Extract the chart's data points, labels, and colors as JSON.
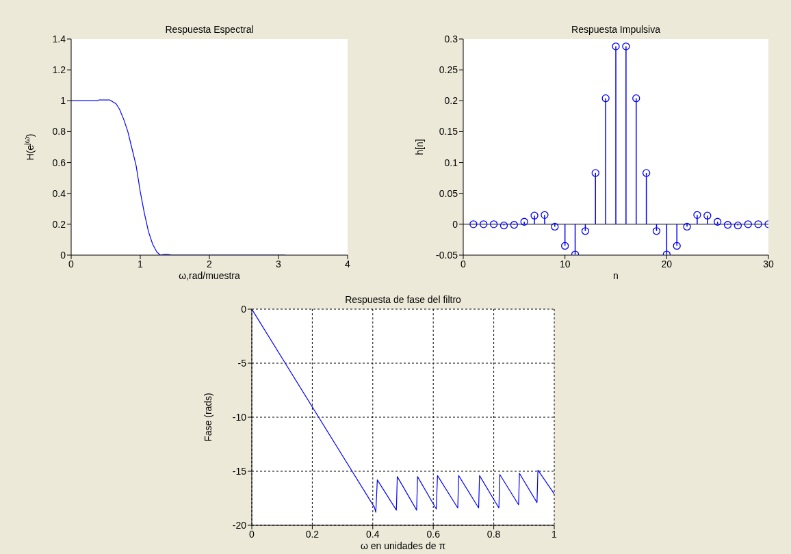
{
  "chart_data": [
    {
      "type": "line",
      "title": "Respuesta Espectral",
      "xlabel": "ω,rad/muestra",
      "ylabel": "H(e$^{jω}$)",
      "series": [
        {
          "color": "#0000ff",
          "x": [
            0,
            0.38,
            0.4,
            0.56,
            0.65,
            0.7,
            0.76,
            0.82,
            0.88,
            0.94,
            1.0,
            1.06,
            1.12,
            1.18,
            1.24,
            1.29,
            1.35,
            1.4,
            1.45,
            3.1
          ],
          "values": [
            1,
            1,
            1.005,
            1.005,
            0.98,
            0.945,
            0.88,
            0.8,
            0.69,
            0.58,
            0.41,
            0.27,
            0.15,
            0.07,
            0.02,
            0,
            0.005,
            0.005,
            0,
            0
          ]
        }
      ],
      "xlim": [
        0,
        4
      ],
      "xticks": [
        0,
        1,
        2,
        3,
        4
      ],
      "ylim": [
        0,
        1.4
      ],
      "yticks": [
        0,
        0.2,
        0.4,
        0.6,
        0.8,
        1,
        1.2,
        1.4
      ]
    },
    {
      "type": "lollipop",
      "title": "Respuesta Impulsiva",
      "xlabel": "n",
      "ylabel": "h[n]",
      "marker": "circle",
      "series": [
        {
          "color": "#0000ff",
          "x": [
            1,
            2,
            3,
            4,
            5,
            6,
            7,
            8,
            9,
            10,
            11,
            12,
            13,
            14,
            15,
            16,
            17,
            18,
            19,
            20,
            21,
            22,
            23,
            24,
            25,
            26,
            27,
            28,
            29,
            30
          ],
          "values": [
            0,
            0,
            0,
            -0.002,
            -0.001,
            0.004,
            0.014,
            0.015,
            -0.004,
            -0.035,
            -0.049,
            -0.011,
            0.083,
            0.204,
            0.288,
            0.288,
            0.204,
            0.083,
            -0.011,
            -0.049,
            -0.035,
            -0.004,
            0.015,
            0.014,
            0.004,
            -0.001,
            -0.002,
            0,
            0,
            0
          ]
        }
      ],
      "xlim": [
        0,
        30
      ],
      "xticks": [
        0,
        10,
        20,
        30
      ],
      "ylim": [
        -0.05,
        0.3
      ],
      "yticks": [
        -0.05,
        0,
        0.05,
        0.1,
        0.15,
        0.2,
        0.25,
        0.3
      ]
    },
    {
      "type": "line",
      "title": "Respuesta de fase del filtro",
      "xlabel": "ω en unidades de π",
      "ylabel": "Fase (rads)",
      "grid": true,
      "series": [
        {
          "color": "#0000ff",
          "x": [
            0,
            0.398,
            0.405,
            0.41,
            0.415,
            0.478,
            0.481,
            0.545,
            0.548,
            0.61,
            0.614,
            0.681,
            0.684,
            0.75,
            0.753,
            0.817,
            0.82,
            0.882,
            0.885,
            0.943,
            0.946,
            1
          ],
          "values": [
            0,
            -18.0,
            -18.3,
            -18.8,
            -15.8,
            -18.6,
            -15.5,
            -18.6,
            -15.5,
            -18.5,
            -15.4,
            -18.4,
            -15.4,
            -18.4,
            -15.4,
            -18.4,
            -15.3,
            -18.1,
            -15.2,
            -17.9,
            -14.9,
            -17.1
          ]
        }
      ],
      "xlim": [
        0,
        1
      ],
      "xticks": [
        0,
        0.2,
        0.4,
        0.6,
        0.8,
        1
      ],
      "ylim": [
        -20,
        0
      ],
      "yticks": [
        -20,
        -15,
        -10,
        -5,
        0
      ]
    }
  ]
}
